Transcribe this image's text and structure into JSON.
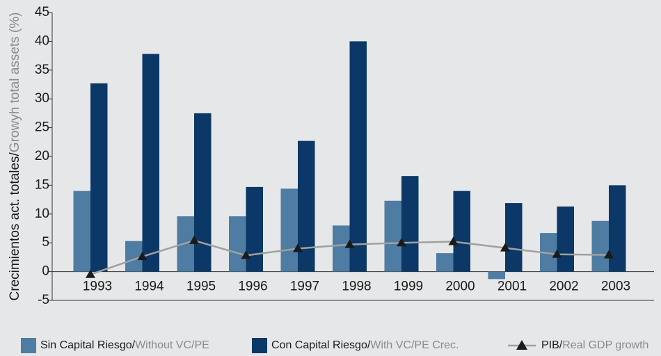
{
  "chart_data": {
    "type": "bar",
    "y_label": "Crecimientos act. totales/Growyh total assets (%)",
    "categories": [
      "1993",
      "1994",
      "1995",
      "1996",
      "1997",
      "1998",
      "1999",
      "2000",
      "2001",
      "2002",
      "2003"
    ],
    "series": [
      {
        "name": "Sin Capital Riesgo/Without VC/PE",
        "type": "bar",
        "color": "#4e7ca2",
        "values": [
          14,
          5.3,
          9.6,
          9.6,
          14.4,
          8,
          12.3,
          3.2,
          -1.3,
          6.7,
          8.8
        ]
      },
      {
        "name": "Con Capital Riesgo/With VC/PE Crec.",
        "type": "bar",
        "color": "#0b3866",
        "values": [
          32.7,
          37.8,
          27.5,
          14.7,
          22.7,
          40,
          16.6,
          14,
          11.9,
          11.3,
          15
        ]
      },
      {
        "name": "PIB/Real GDP growth",
        "type": "line",
        "color": "#a0a0a0",
        "values": [
          -0.5,
          2.6,
          5.4,
          2.8,
          4,
          4.7,
          5,
          5.2,
          4.1,
          3,
          2.9
        ]
      }
    ],
    "ylim": [
      -5,
      45
    ],
    "yticks": [
      -5,
      0,
      5,
      10,
      15,
      20,
      25,
      30,
      35,
      40,
      45
    ]
  }
}
